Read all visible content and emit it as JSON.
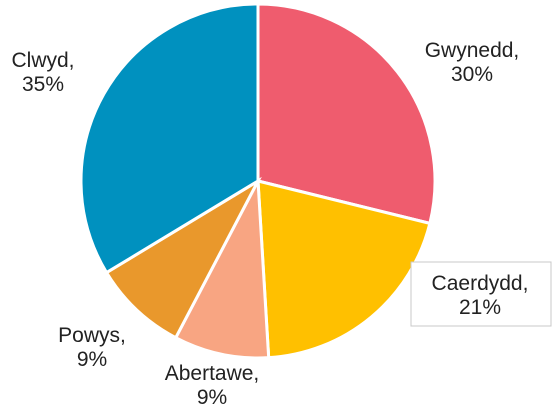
{
  "chart_data": {
    "type": "pie",
    "title": "",
    "slices": [
      {
        "label": "Gwynedd",
        "value": 30,
        "value_text": "30%",
        "color": "#EF5C6E"
      },
      {
        "label": "Caerdydd",
        "value": 21,
        "value_text": "21%",
        "color": "#FFC000"
      },
      {
        "label": "Abertawe",
        "value": 9,
        "value_text": "9%",
        "color": "#F8A582"
      },
      {
        "label": "Powys",
        "value": 9,
        "value_text": "9%",
        "color": "#E9982C"
      },
      {
        "label": "Clwyd",
        "value": 35,
        "value_text": "35%",
        "color": "#0091BF"
      }
    ],
    "start_angle": "12 o'clock",
    "direction": "clockwise",
    "legend": "none",
    "data_labels": "category name and percentage"
  }
}
